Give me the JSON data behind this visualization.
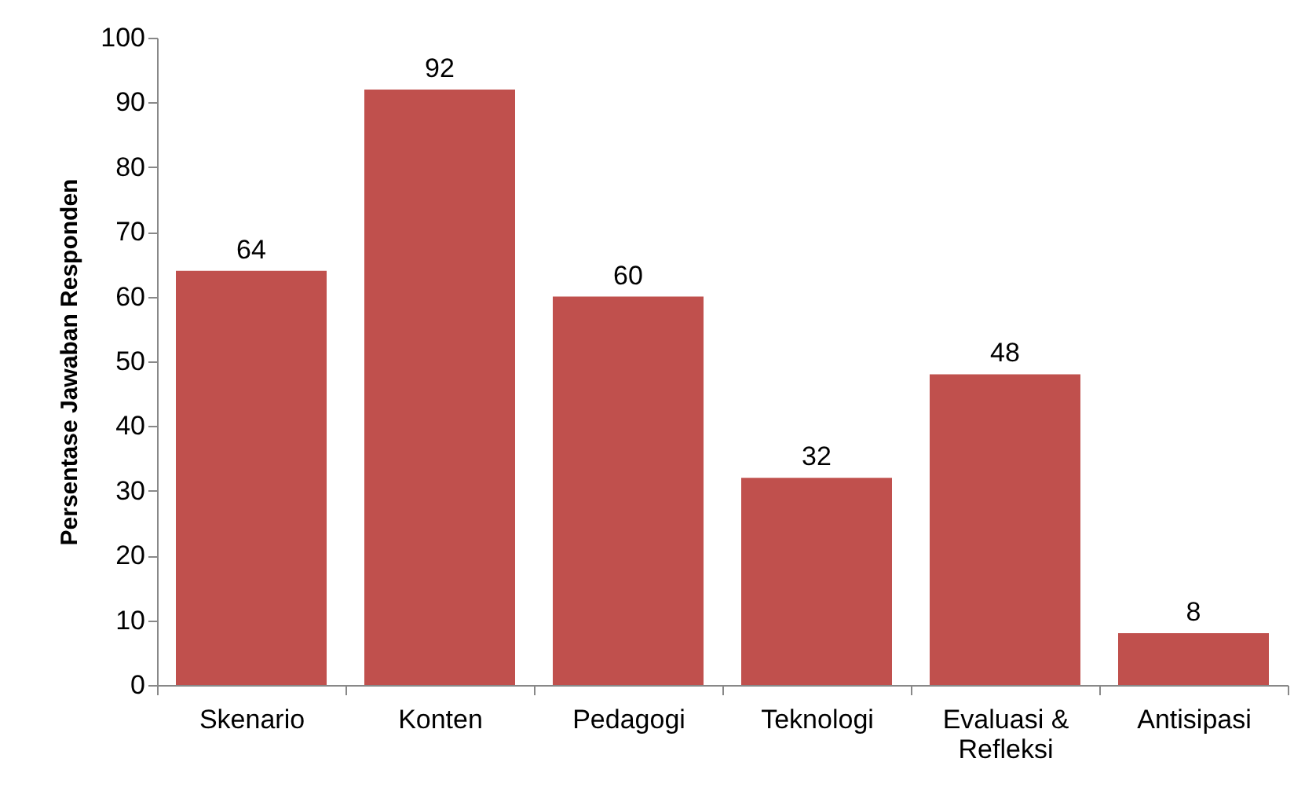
{
  "chart_data": {
    "type": "bar",
    "ylabel": "Persentase Jawaban Responden",
    "categories": [
      "Skenario",
      "Konten",
      "Pedagogi",
      "Teknologi",
      "Evaluasi & Refleksi",
      "Antisipasi"
    ],
    "values": [
      64,
      92,
      60,
      32,
      48,
      8
    ],
    "color": "#c0504d",
    "data_labels": true,
    "ylim": [
      0,
      100
    ],
    "yticks": [
      0,
      10,
      20,
      30,
      40,
      50,
      60,
      70,
      80,
      90,
      100
    ],
    "grid": false
  }
}
